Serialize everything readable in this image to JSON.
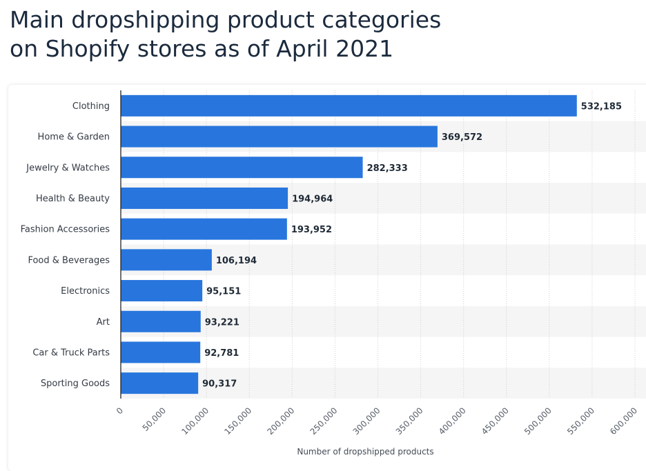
{
  "chart_data": {
    "type": "bar",
    "orientation": "horizontal",
    "title_lines": [
      "Main dropshipping product categories",
      "on Shopify stores as of April 2021"
    ],
    "categories": [
      "Clothing",
      "Home & Garden",
      "Jewelry & Watches",
      "Health & Beauty",
      "Fashion Accessories",
      "Food & Beverages",
      "Electronics",
      "Art",
      "Car & Truck Parts",
      "Sporting Goods"
    ],
    "values": [
      532185,
      369572,
      282333,
      194964,
      193952,
      106194,
      95151,
      93221,
      92781,
      90317
    ],
    "value_labels": [
      "532,185",
      "369,572",
      "282,333",
      "194,964",
      "193,952",
      "106,194",
      "95,151",
      "93,221",
      "92,781",
      "90,317"
    ],
    "xlabel": "Number of dropshipped products",
    "ylabel": "",
    "xlim": [
      0,
      600000
    ],
    "xticks": [
      0,
      50000,
      100000,
      150000,
      200000,
      250000,
      300000,
      350000,
      400000,
      450000,
      500000,
      550000,
      600000
    ],
    "xtick_labels": [
      "0",
      "50,000",
      "100,000",
      "150,000",
      "200,000",
      "250,000",
      "300,000",
      "350,000",
      "400,000",
      "450,000",
      "500,000",
      "550,000",
      "600,000"
    ],
    "grid": true,
    "legend": "none",
    "colors": {
      "bar": "#2876dd",
      "band": "#f5f5f5",
      "grid": "#cfcfcf",
      "axis": "#222222"
    }
  }
}
